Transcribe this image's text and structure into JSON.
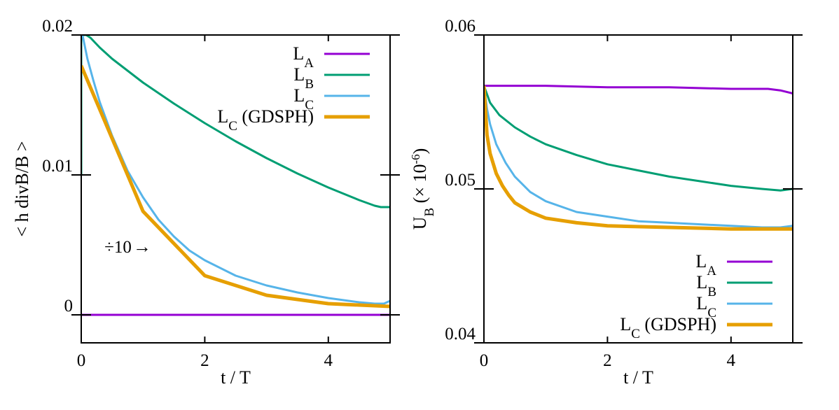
{
  "chart_data": [
    {
      "type": "line",
      "panel": "left",
      "xlabel": "t / T",
      "ylabel": "< h divB/B >",
      "xlim": [
        0,
        5
      ],
      "ylim": [
        -0.002,
        0.02
      ],
      "xticks": [
        {
          "v": 0,
          "label": "0"
        },
        {
          "v": 2,
          "label": "2"
        },
        {
          "v": 4,
          "label": "4"
        }
      ],
      "yticks": [
        {
          "v": 0,
          "label": "0"
        },
        {
          "v": 0.01,
          "label": "0.01"
        },
        {
          "v": 0.02,
          "label": "0.02"
        }
      ],
      "grid": false,
      "legend_position": "top-right",
      "annotation": {
        "text": "÷10",
        "arrow": "→",
        "x": 1.2,
        "y": 0.0049,
        "color": "#e69f00"
      },
      "series": [
        {
          "name": "A",
          "subscript": "A",
          "base": "L",
          "suffix": "",
          "color": "#9400d3",
          "width": 3,
          "x": [
            0,
            0.5,
            1,
            2,
            3,
            4,
            5
          ],
          "y": [
            0,
            0,
            0,
            0,
            0,
            0,
            0
          ]
        },
        {
          "name": "B",
          "subscript": "B",
          "base": "L",
          "suffix": "",
          "color": "#009e73",
          "width": 3,
          "x": [
            0,
            0.0,
            0.08,
            0.15,
            0.3,
            0.5,
            1,
            1.5,
            2,
            2.5,
            3,
            3.5,
            4,
            4.5,
            4.75,
            4.85,
            5
          ],
          "y": [
            0.01,
            0.02,
            0.02,
            0.0198,
            0.0191,
            0.0183,
            0.0166,
            0.0151,
            0.0137,
            0.0124,
            0.0112,
            0.0101,
            0.0091,
            0.0082,
            0.0078,
            0.0077,
            0.0077
          ]
        },
        {
          "name": "C",
          "subscript": "C",
          "base": "L",
          "suffix": "",
          "color": "#56b4e9",
          "width": 3,
          "x": [
            0,
            0.02,
            0.1,
            0.2,
            0.3,
            0.5,
            0.75,
            1,
            1.25,
            1.5,
            1.75,
            2,
            2.5,
            3,
            3.5,
            4,
            4.5,
            4.75,
            4.9,
            5
          ],
          "y": [
            0.02,
            0.02,
            0.0183,
            0.0167,
            0.0152,
            0.0128,
            0.0103,
            0.0084,
            0.0068,
            0.0056,
            0.0046,
            0.0039,
            0.0028,
            0.0021,
            0.0016,
            0.0012,
            0.0009,
            0.0008,
            0.0008,
            0.001
          ]
        },
        {
          "name": "C (GDSPH)",
          "subscript": "C",
          "base": "L",
          "suffix": " (GDSPH)",
          "color": "#e69f00",
          "width": 5,
          "x": [
            0,
            1,
            2,
            3,
            4,
            5
          ],
          "y": [
            0.0178,
            0.0074,
            0.0028,
            0.0014,
            0.0008,
            0.0006
          ]
        }
      ]
    },
    {
      "type": "line",
      "panel": "right",
      "xlabel": "t / T",
      "ylabel_main": "U",
      "ylabel_sub": "B",
      "ylabel_rest": " (× 10",
      "ylabel_sup": "-6",
      "ylabel_close": ")",
      "xlim": [
        0,
        5
      ],
      "ylim": [
        0.04,
        0.06
      ],
      "xticks": [
        {
          "v": 0,
          "label": "0"
        },
        {
          "v": 2,
          "label": "2"
        },
        {
          "v": 4,
          "label": "4"
        }
      ],
      "yticks": [
        {
          "v": 0.04,
          "label": "0.04"
        },
        {
          "v": 0.05,
          "label": "0.05"
        },
        {
          "v": 0.06,
          "label": "0.06"
        }
      ],
      "grid": false,
      "legend_position": "bottom-right",
      "series": [
        {
          "name": "A",
          "subscript": "A",
          "base": "L",
          "suffix": "",
          "color": "#9400d3",
          "width": 3,
          "x": [
            0,
            1,
            2,
            3,
            4,
            4.6,
            4.8,
            5
          ],
          "y": [
            0.0567,
            0.0567,
            0.0566,
            0.0566,
            0.0565,
            0.0565,
            0.0564,
            0.0562
          ]
        },
        {
          "name": "B",
          "subscript": "B",
          "base": "L",
          "suffix": "",
          "color": "#009e73",
          "width": 3,
          "x": [
            0,
            0.1,
            0.25,
            0.5,
            0.75,
            1,
            1.5,
            2,
            2.5,
            3,
            3.5,
            4,
            4.5,
            4.8,
            5
          ],
          "y": [
            0.0567,
            0.0556,
            0.0548,
            0.054,
            0.0534,
            0.0529,
            0.0522,
            0.0516,
            0.0512,
            0.0508,
            0.0505,
            0.0502,
            0.05,
            0.0499,
            0.05
          ]
        },
        {
          "name": "C",
          "subscript": "C",
          "base": "L",
          "suffix": "",
          "color": "#56b4e9",
          "width": 3,
          "x": [
            0,
            0.05,
            0.1,
            0.2,
            0.35,
            0.5,
            0.75,
            1,
            1.5,
            2,
            2.5,
            3,
            3.5,
            4,
            4.5,
            4.8,
            5
          ],
          "y": [
            0.0567,
            0.0552,
            0.0542,
            0.0529,
            0.0517,
            0.0508,
            0.0498,
            0.0492,
            0.0485,
            0.0482,
            0.0479,
            0.0478,
            0.0477,
            0.0476,
            0.0475,
            0.0475,
            0.0476
          ]
        },
        {
          "name": "C (GDSPH)",
          "subscript": "C",
          "base": "L",
          "suffix": " (GDSPH)",
          "color": "#e69f00",
          "width": 5,
          "x": [
            0,
            0.05,
            0.1,
            0.2,
            0.3,
            0.4,
            0.5,
            0.75,
            1,
            1.5,
            2,
            3,
            4,
            5
          ],
          "y": [
            0.0567,
            0.0535,
            0.0523,
            0.051,
            0.0502,
            0.0496,
            0.0491,
            0.0485,
            0.0481,
            0.0478,
            0.0476,
            0.0475,
            0.0474,
            0.0474
          ]
        }
      ]
    }
  ]
}
